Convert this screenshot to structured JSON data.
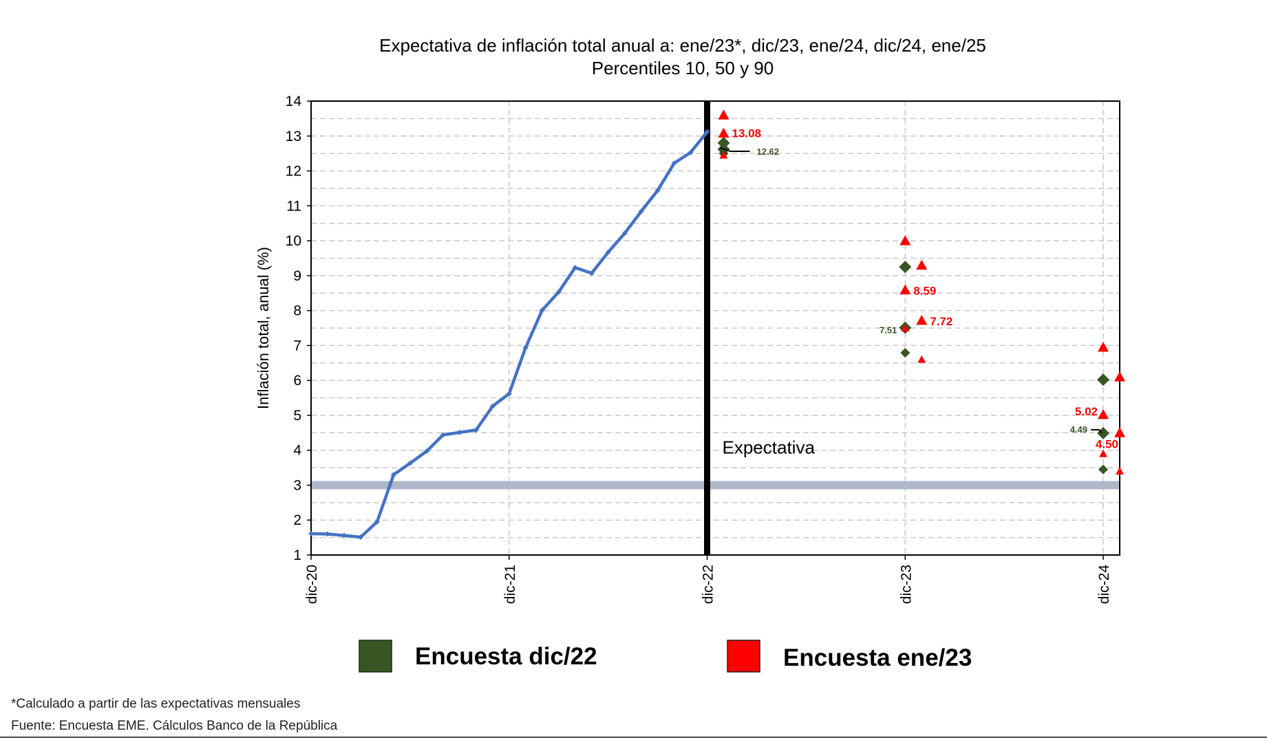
{
  "chart_data": {
    "type": "line",
    "title": "Expectativa de inflación total anual a: ene/23*, dic/23, ene/24, dic/24, ene/25",
    "subtitle": "Percentiles 10, 50 y 90",
    "ylabel": "Inflación total, anual (%)",
    "xlabel": "",
    "ylim": [
      1,
      14
    ],
    "yticks": [
      "1",
      "2",
      "3",
      "4",
      "5",
      "6",
      "7",
      "8",
      "9",
      "10",
      "11",
      "12",
      "13",
      "14"
    ],
    "xlim": [
      "2020-12",
      "2025-01"
    ],
    "xticks": [
      {
        "x": "2020-12",
        "label": "dic-20"
      },
      {
        "x": "2021-12",
        "label": "dic-21"
      },
      {
        "x": "2022-12",
        "label": "dic-22"
      },
      {
        "x": "2023-12",
        "label": "dic-23"
      },
      {
        "x": "2024-12",
        "label": "dic-24"
      }
    ],
    "grid": true,
    "target_band": 3,
    "annotation_text": "Expectativa",
    "colors": {
      "line": "#4472C4",
      "survey_dec": "#375623",
      "survey_jan": "#FF0000",
      "target": "#ADB9CA"
    },
    "observed": {
      "x": [
        "2020-12",
        "2021-01",
        "2021-02",
        "2021-03",
        "2021-04",
        "2021-05",
        "2021-06",
        "2021-07",
        "2021-08",
        "2021-09",
        "2021-10",
        "2021-11",
        "2021-12",
        "2022-01",
        "2022-02",
        "2022-03",
        "2022-04",
        "2022-05",
        "2022-06",
        "2022-07",
        "2022-08",
        "2022-09",
        "2022-10",
        "2022-11",
        "2022-12"
      ],
      "y": [
        1.61,
        1.6,
        1.56,
        1.51,
        1.95,
        3.3,
        3.63,
        3.97,
        4.44,
        4.51,
        4.58,
        5.26,
        5.62,
        6.94,
        8.01,
        8.53,
        9.23,
        9.07,
        9.67,
        10.21,
        10.84,
        11.44,
        12.22,
        12.53,
        13.12
      ]
    },
    "series": [
      {
        "name": "Encuesta dic/22",
        "marker": "diamond",
        "points": [
          {
            "x": "2023-01",
            "p10": 12.5,
            "p50": 12.62,
            "p90": 12.8,
            "label": "12.62"
          },
          {
            "x": "2023-12",
            "p10": 6.79,
            "p50": 7.51,
            "p90": 9.25,
            "label": "7.51"
          },
          {
            "x": "2024-12",
            "p10": 3.45,
            "p50": 4.49,
            "p90": 6.02,
            "label": "4.49"
          }
        ]
      },
      {
        "name": "Encuesta ene/23",
        "marker": "triangle",
        "points": [
          {
            "x": "2023-01",
            "p10": 12.45,
            "p50": 13.08,
            "p90": 13.6,
            "label": "13.08"
          },
          {
            "x": "2023-12",
            "p10": 7.5,
            "p50": 8.59,
            "p90": 10.0,
            "label": "8.59"
          },
          {
            "x": "2024-01",
            "p10": 6.6,
            "p50": 7.72,
            "p90": 9.3,
            "label": "7.72"
          },
          {
            "x": "2024-12",
            "p10": 3.9,
            "p50": 5.02,
            "p90": 6.95,
            "label": "5.02"
          },
          {
            "x": "2025-01",
            "p10": 3.4,
            "p50": 4.5,
            "p90": 6.1,
            "label": "4.50"
          }
        ]
      }
    ]
  },
  "footnotes": [
    "*Calculado a partir de las expectativas mensuales",
    "Fuente: Encuesta EME. Cálculos Banco de la República"
  ]
}
